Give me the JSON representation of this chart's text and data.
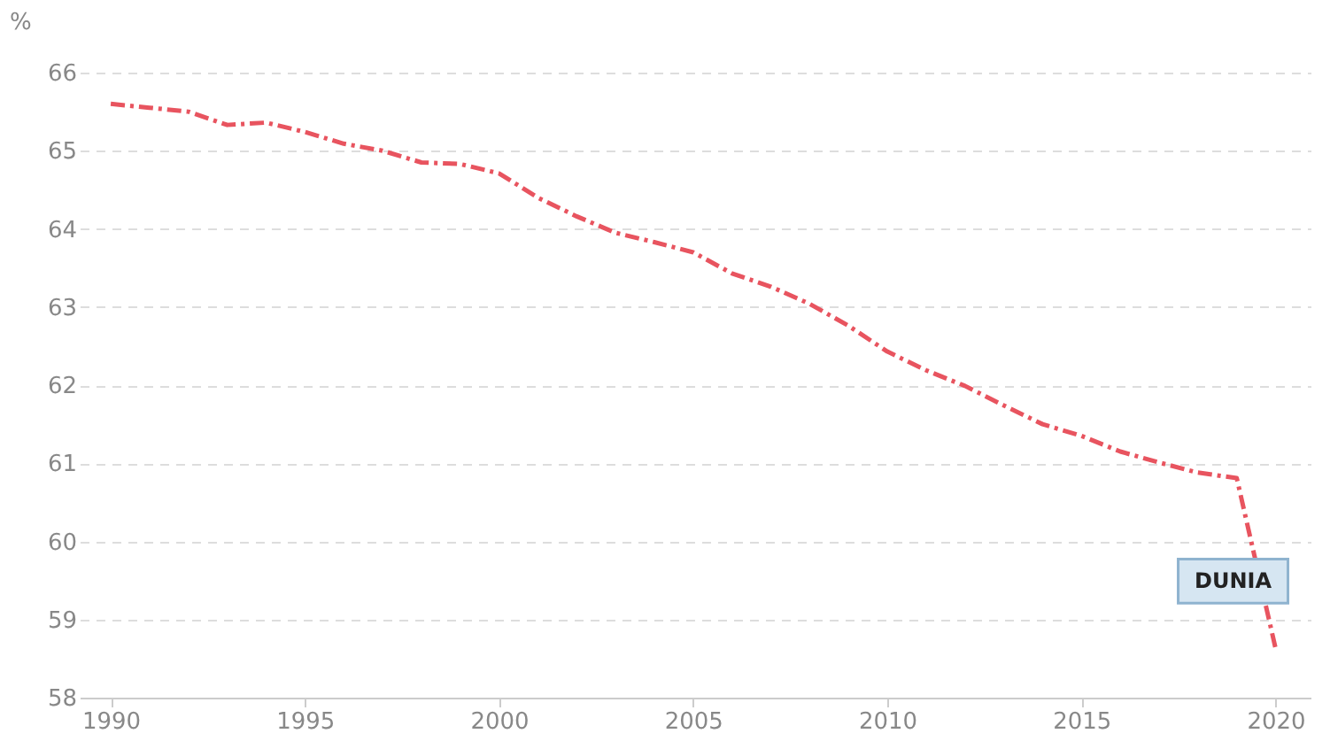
{
  "chart_data": {
    "type": "line",
    "ylabel": "%",
    "x": [
      1990,
      1991,
      1992,
      1993,
      1994,
      1995,
      1996,
      1997,
      1998,
      1999,
      2000,
      2001,
      2002,
      2003,
      2004,
      2005,
      2006,
      2007,
      2008,
      2009,
      2010,
      2011,
      2012,
      2013,
      2014,
      2015,
      2016,
      2017,
      2018,
      2019,
      2020
    ],
    "series": [
      {
        "name": "DUNIA",
        "color": "#e8545f",
        "values": [
          65.6,
          65.55,
          65.5,
          65.33,
          65.36,
          65.24,
          65.09,
          65.0,
          64.85,
          64.83,
          64.71,
          64.4,
          64.16,
          63.95,
          63.83,
          63.7,
          63.43,
          63.26,
          63.04,
          62.76,
          62.43,
          62.19,
          61.99,
          61.74,
          61.5,
          61.35,
          61.15,
          61.01,
          60.88,
          60.81,
          58.63
        ]
      }
    ],
    "xlim": [
      1989.2,
      2020.9
    ],
    "xticks": [
      1990,
      1995,
      2000,
      2005,
      2010,
      2015,
      2020
    ],
    "ylim": [
      58,
      66
    ],
    "yticks": [
      58,
      59,
      60,
      61,
      62,
      63,
      64,
      65,
      66
    ],
    "grid": "y",
    "line_style": "dashed",
    "legend": false
  }
}
